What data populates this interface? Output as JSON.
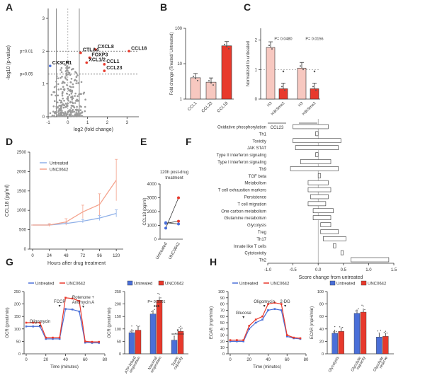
{
  "panel_labels": [
    "A",
    "B",
    "C",
    "D",
    "E",
    "F",
    "G",
    "H"
  ],
  "colors": {
    "red": "#e8392c",
    "pink": "#f7c8c0",
    "blue": "#4a6fd8",
    "light_blue": "#8fb0e8",
    "salmon": "#f4a38d",
    "grey": "#999999"
  },
  "chart_data": [
    {
      "panel": "A",
      "type": "scatter",
      "title": "",
      "xlabel": "log2 (fold change)",
      "ylabel": "-log10 (p-value)",
      "x_ticks": [
        "-1",
        "0",
        "1",
        "2",
        "3"
      ],
      "y_ticks": [
        "0",
        "1",
        "2",
        "3"
      ],
      "xlim": [
        -1,
        3.6
      ],
      "ylim": [
        0,
        3.3
      ],
      "threshold_labels": [
        "p=0.01",
        "p=0.05"
      ],
      "highlighted": [
        {
          "label": "CCL18",
          "x": 3.1,
          "y": 2.0
        },
        {
          "label": "CXCL8",
          "x": 1.4,
          "y": 2.05
        },
        {
          "label": "CTLA4",
          "x": 0.65,
          "y": 1.95
        },
        {
          "label": "FOXP3",
          "x": 1.1,
          "y": 1.8
        },
        {
          "label": "XCL1/2",
          "x": 0.95,
          "y": 1.65
        },
        {
          "label": "CCL1",
          "x": 1.85,
          "y": 1.6
        },
        {
          "label": "CCL23",
          "x": 1.85,
          "y": 1.4
        },
        {
          "label": "CX3CR1",
          "x": -0.9,
          "y": 1.55
        }
      ]
    },
    {
      "panel": "B",
      "type": "bar",
      "title": "",
      "categories": [
        "CCL1",
        "CCL23",
        "CCL18"
      ],
      "values": [
        4,
        3,
        32
      ],
      "ylabel": "Fold change (Treated/ Untreated)",
      "y_ticks": [
        "1",
        "10",
        "100"
      ],
      "ylim": [
        1,
        100
      ],
      "scale": "log"
    },
    {
      "panel": "C",
      "type": "bar",
      "title": "",
      "ylabel": "Normalized to untreated",
      "y_ticks": [
        "0",
        "1",
        "2"
      ],
      "ylim": [
        0,
        2.4
      ],
      "groups": [
        {
          "name": "CCL23",
          "categories": [
            "H3",
            "H3K9me2"
          ],
          "values": [
            1.75,
            0.35
          ],
          "p_value": "P= 0.0480"
        },
        {
          "name": "CCL18",
          "categories": [
            "H3",
            "H3K9me2"
          ],
          "values": [
            1.05,
            0.35
          ],
          "p_value": "P= 0.0156"
        }
      ],
      "significance": "*"
    },
    {
      "panel": "D",
      "type": "line",
      "title": "",
      "xlabel": "Hours after drug treatment",
      "ylabel": "CCL18 (pg/ml)",
      "x": [
        0,
        24,
        48,
        72,
        96,
        120
      ],
      "x_ticks": [
        "0",
        "24",
        "48",
        "72",
        "96",
        "120"
      ],
      "y_ticks": [
        "0",
        "500",
        "1000",
        "1500",
        "2000",
        "2500"
      ],
      "ylim": [
        0,
        2500
      ],
      "series": [
        {
          "name": "Untreated",
          "values": [
            620,
            620,
            660,
            720,
            800,
            920
          ]
        },
        {
          "name": "UNC0642",
          "values": [
            620,
            620,
            700,
            960,
            1150,
            1780
          ]
        }
      ]
    },
    {
      "panel": "E",
      "type": "scatter",
      "title": "120h post-drug treatment",
      "categories": [
        "Untreated",
        "UNC0642"
      ],
      "ylabel": "CCL18 (pg/ml)",
      "y_ticks": [
        "0",
        "1000",
        "2000",
        "3000",
        "4000"
      ],
      "ylim": [
        0,
        4000
      ],
      "pairs": [
        [
          800,
          3000
        ],
        [
          1150,
          1300
        ],
        [
          1200,
          1100
        ]
      ]
    },
    {
      "panel": "F",
      "type": "bar",
      "title": "",
      "xlabel": "Score change from untreated",
      "x_ticks": [
        "-1.0",
        "-0.5",
        "0.0",
        "0.5",
        "1.0",
        "1.5"
      ],
      "xlim": [
        -1,
        1.5
      ],
      "categories": [
        "Oxidative phosphorylation",
        "Th1",
        "Toxicity",
        "JAK STAT",
        "Type II interferon signaling",
        "Type I interferon signaling",
        "Th9",
        "TGF beta",
        "Metabolism",
        "T cell exhaustion markers",
        "Persistence",
        "T cell migration",
        "One carbon metabolism",
        "Glutamine metabolism",
        "Glycolysis",
        "Treg",
        "Th17",
        "Innate like T cells",
        "Cytotoxicity",
        "Th2"
      ],
      "ranges": [
        [
          -0.5,
          0.2
        ],
        [
          -0.05,
          0.0
        ],
        [
          -0.5,
          0.45
        ],
        [
          -0.45,
          0.4
        ],
        [
          -0.05,
          0.0
        ],
        [
          -0.35,
          0.25
        ],
        [
          -0.55,
          0.4
        ],
        [
          0.0,
          0.05
        ],
        [
          -0.2,
          0.2
        ],
        [
          -0.2,
          0.25
        ],
        [
          -0.15,
          0.2
        ],
        [
          -0.2,
          0.15
        ],
        [
          -0.1,
          0.3
        ],
        [
          -0.1,
          0.25
        ],
        [
          0.05,
          0.25
        ],
        [
          0.05,
          0.4
        ],
        [
          0.1,
          0.55
        ],
        [
          0.3,
          0.35
        ],
        [
          0.45,
          0.5
        ],
        [
          0.65,
          1.4
        ]
      ]
    },
    {
      "panel": "G",
      "type": "line",
      "title": "",
      "xlabel": "Time (minutes)",
      "ylabel": "OCR (pmol/min)",
      "x_ticks": [
        "0",
        "20",
        "40",
        "60",
        "80"
      ],
      "y_ticks": [
        "0",
        "50",
        "100",
        "150",
        "200",
        "250"
      ],
      "ylim": [
        0,
        250
      ],
      "annotations": [
        "Oligomycin",
        "FCCP",
        "Rotenone + Antimycin A"
      ],
      "x": [
        0,
        7,
        14,
        20,
        27,
        34,
        40,
        47,
        54,
        60,
        67,
        74
      ],
      "series": [
        {
          "name": "Untreated",
          "values": [
            110,
            110,
            110,
            60,
            60,
            60,
            180,
            178,
            170,
            45,
            44,
            44
          ]
        },
        {
          "name": "UNC0642",
          "values": [
            125,
            125,
            125,
            65,
            65,
            65,
            225,
            222,
            212,
            50,
            48,
            48
          ]
        }
      ]
    },
    {
      "panel": "G",
      "type": "bar",
      "title": "",
      "ylabel": "OCR (pmol/min)",
      "categories": [
        "ATP-linked respiration",
        "Maximal respiration",
        "Spare capacity"
      ],
      "y_ticks": [
        "0",
        "50",
        "100",
        "150",
        "200",
        "250"
      ],
      "ylim": [
        0,
        250
      ],
      "series": [
        {
          "name": "Untreated",
          "values": [
            85,
            160,
            55
          ]
        },
        {
          "name": "UNC0642",
          "values": [
            95,
            215,
            90
          ]
        }
      ],
      "annotations": [
        "P= 0.0001",
        "***",
        "*"
      ]
    },
    {
      "panel": "H",
      "type": "line",
      "title": "",
      "xlabel": "Time (minutes)",
      "ylabel": "ECAR (mpH/min)",
      "x_ticks": [
        "0",
        "20",
        "40",
        "60",
        "80"
      ],
      "y_ticks": [
        "0",
        "10",
        "20",
        "30",
        "40",
        "50",
        "60",
        "70",
        "80",
        "90",
        "100"
      ],
      "ylim": [
        0,
        100
      ],
      "annotations": [
        "Glucose",
        "Oligomycin",
        "2-DG"
      ],
      "x": [
        0,
        7,
        14,
        20,
        27,
        34,
        40,
        47,
        54,
        60,
        67,
        74
      ],
      "series": [
        {
          "name": "Untreated",
          "values": [
            20,
            20,
            20,
            40,
            50,
            55,
            70,
            72,
            70,
            28,
            25,
            24
          ]
        },
        {
          "name": "UNC0642",
          "values": [
            22,
            22,
            22,
            45,
            55,
            60,
            80,
            82,
            80,
            30,
            26,
            25
          ]
        }
      ]
    },
    {
      "panel": "H",
      "type": "bar",
      "title": "",
      "ylabel": "ECAR (mpH/min)",
      "categories": [
        "Glycolysis",
        "Glycolytic capacity",
        "Glycolytic reserve"
      ],
      "y_ticks": [
        "0",
        "20",
        "40",
        "60",
        "80",
        "100"
      ],
      "ylim": [
        0,
        100
      ],
      "series": [
        {
          "name": "Untreated",
          "values": [
            33,
            65,
            27
          ]
        },
        {
          "name": "UNC0642",
          "values": [
            36,
            67,
            28
          ]
        }
      ]
    }
  ]
}
